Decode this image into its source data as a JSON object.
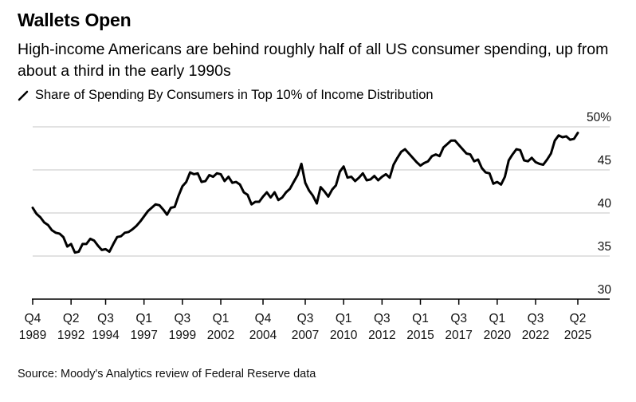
{
  "title": "Wallets Open",
  "subtitle": "High-income Americans are behind roughly half of all US consumer spending, up from about a third in the early 1990s",
  "legend_label": "Share of Spending By Consumers in Top 10% of Income Distribution",
  "source": "Source: Moody's Analytics review of Federal Reserve data",
  "chart_data": {
    "type": "line",
    "title": "Wallets Open",
    "xlabel": "",
    "ylabel": "",
    "ylim": [
      30,
      50
    ],
    "y_unit": "%",
    "yticks": [
      {
        "value": 50,
        "label": "50%"
      },
      {
        "value": 45,
        "label": "45"
      },
      {
        "value": 40,
        "label": "40"
      },
      {
        "value": 35,
        "label": "35"
      },
      {
        "value": 30,
        "label": "30"
      }
    ],
    "xticks": [
      {
        "q": "Q4",
        "year": "1989"
      },
      {
        "q": "Q2",
        "year": "1992"
      },
      {
        "q": "Q3",
        "year": "1994"
      },
      {
        "q": "Q1",
        "year": "1997"
      },
      {
        "q": "Q3",
        "year": "1999"
      },
      {
        "q": "Q1",
        "year": "2002"
      },
      {
        "q": "Q4",
        "year": "2004"
      },
      {
        "q": "Q3",
        "year": "2007"
      },
      {
        "q": "Q1",
        "year": "2010"
      },
      {
        "q": "Q3",
        "year": "2012"
      },
      {
        "q": "Q1",
        "year": "2015"
      },
      {
        "q": "Q3",
        "year": "2017"
      },
      {
        "q": "Q1",
        "year": "2020"
      },
      {
        "q": "Q3",
        "year": "2022"
      },
      {
        "q": "Q2",
        "year": "2025"
      }
    ],
    "grid": true,
    "line_color": "#000000",
    "grid_color": "#d9d9d9",
    "series": [
      {
        "name": "Share of Spending By Consumers in Top 10% of Income Distribution",
        "values": [
          40.6,
          39.9,
          39.5,
          38.9,
          38.6,
          38.0,
          37.7,
          37.6,
          37.2,
          36.1,
          36.4,
          35.4,
          35.5,
          36.4,
          36.4,
          37.0,
          36.8,
          36.2,
          35.7,
          35.8,
          35.5,
          36.4,
          37.2,
          37.3,
          37.7,
          37.8,
          38.1,
          38.5,
          39.0,
          39.6,
          40.2,
          40.6,
          41.0,
          40.9,
          40.4,
          39.8,
          40.6,
          40.7,
          42.0,
          43.1,
          43.6,
          44.7,
          44.5,
          44.6,
          43.6,
          43.7,
          44.4,
          44.2,
          44.6,
          44.5,
          43.7,
          44.2,
          43.5,
          43.6,
          43.3,
          42.4,
          42.1,
          41.0,
          41.3,
          41.3,
          41.9,
          42.4,
          41.8,
          42.4,
          41.5,
          41.8,
          42.4,
          42.8,
          43.6,
          44.4,
          45.7,
          43.5,
          42.6,
          42.0,
          41.1,
          43.0,
          42.5,
          41.9,
          42.7,
          43.2,
          44.8,
          45.4,
          44.1,
          44.2,
          43.7,
          44.1,
          44.6,
          43.8,
          43.9,
          44.3,
          43.8,
          44.2,
          44.5,
          44.1,
          45.6,
          46.4,
          47.1,
          47.4,
          46.9,
          46.4,
          45.9,
          45.5,
          45.8,
          46.0,
          46.6,
          46.8,
          46.6,
          47.6,
          48.0,
          48.4,
          48.4,
          47.9,
          47.4,
          46.9,
          46.8,
          46.0,
          46.2,
          45.2,
          44.7,
          44.6,
          43.4,
          43.6,
          43.3,
          44.2,
          46.1,
          46.8,
          47.4,
          47.3,
          46.1,
          46.0,
          46.4,
          45.9,
          45.7,
          45.6,
          46.2,
          46.9,
          48.4,
          49.0,
          48.8,
          48.9,
          48.5,
          48.6,
          49.3
        ]
      }
    ]
  }
}
